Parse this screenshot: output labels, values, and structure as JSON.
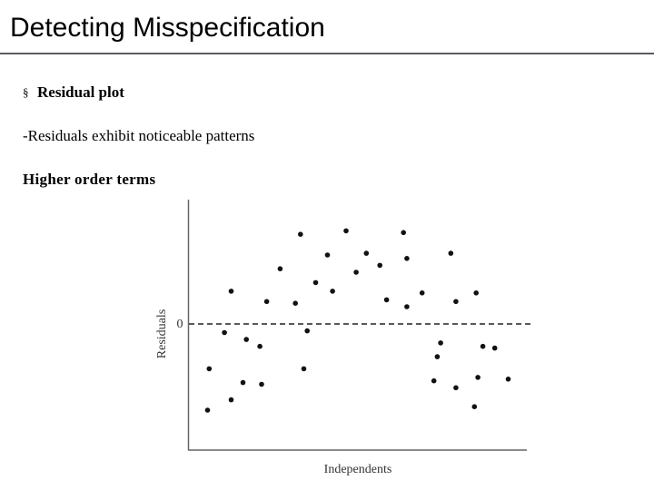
{
  "slide": {
    "title": "Detecting Misspecification",
    "bullet_symbol": "§",
    "bullet_text": "Residual plot",
    "body_text": "-Residuals exhibit noticeable patterns",
    "sub_heading": "Higher order terms"
  },
  "chart_data": {
    "type": "scatter",
    "title": "",
    "xlabel": "Independents",
    "ylabel": "Residuals",
    "reference_line": {
      "y": 0,
      "style": "dashed",
      "label": "0"
    },
    "xlim": [
      0,
      100
    ],
    "ylim": [
      -4,
      3.3
    ],
    "grid": false,
    "x_ticks_shown": false,
    "points": [
      {
        "x": 5.5,
        "y": -2.5
      },
      {
        "x": 6.0,
        "y": -1.3
      },
      {
        "x": 10.5,
        "y": -0.25
      },
      {
        "x": 12.5,
        "y": 0.95
      },
      {
        "x": 12.5,
        "y": -2.2
      },
      {
        "x": 16.0,
        "y": -1.7
      },
      {
        "x": 17.0,
        "y": -0.45
      },
      {
        "x": 21.0,
        "y": -0.65
      },
      {
        "x": 21.5,
        "y": -1.75
      },
      {
        "x": 23.0,
        "y": 0.65
      },
      {
        "x": 27.0,
        "y": 1.6
      },
      {
        "x": 31.5,
        "y": 0.6
      },
      {
        "x": 33.0,
        "y": 2.6
      },
      {
        "x": 34.0,
        "y": -1.3
      },
      {
        "x": 35.0,
        "y": -0.2
      },
      {
        "x": 37.5,
        "y": 1.2
      },
      {
        "x": 41.0,
        "y": 2.0
      },
      {
        "x": 42.5,
        "y": 0.95
      },
      {
        "x": 46.5,
        "y": 2.7
      },
      {
        "x": 49.5,
        "y": 1.5
      },
      {
        "x": 52.5,
        "y": 2.05
      },
      {
        "x": 56.5,
        "y": 1.7
      },
      {
        "x": 58.5,
        "y": 0.7
      },
      {
        "x": 63.5,
        "y": 2.65
      },
      {
        "x": 64.5,
        "y": 1.9
      },
      {
        "x": 64.5,
        "y": 0.5
      },
      {
        "x": 69.0,
        "y": 0.9
      },
      {
        "x": 72.5,
        "y": -1.65
      },
      {
        "x": 73.5,
        "y": -0.95
      },
      {
        "x": 74.5,
        "y": -0.55
      },
      {
        "x": 77.5,
        "y": 2.05
      },
      {
        "x": 79.0,
        "y": -1.85
      },
      {
        "x": 79.0,
        "y": 0.65
      },
      {
        "x": 84.5,
        "y": -2.4
      },
      {
        "x": 85.0,
        "y": 0.9
      },
      {
        "x": 85.5,
        "y": -1.55
      },
      {
        "x": 87.0,
        "y": -0.65
      },
      {
        "x": 90.5,
        "y": -0.7
      },
      {
        "x": 94.5,
        "y": -1.6
      }
    ]
  }
}
